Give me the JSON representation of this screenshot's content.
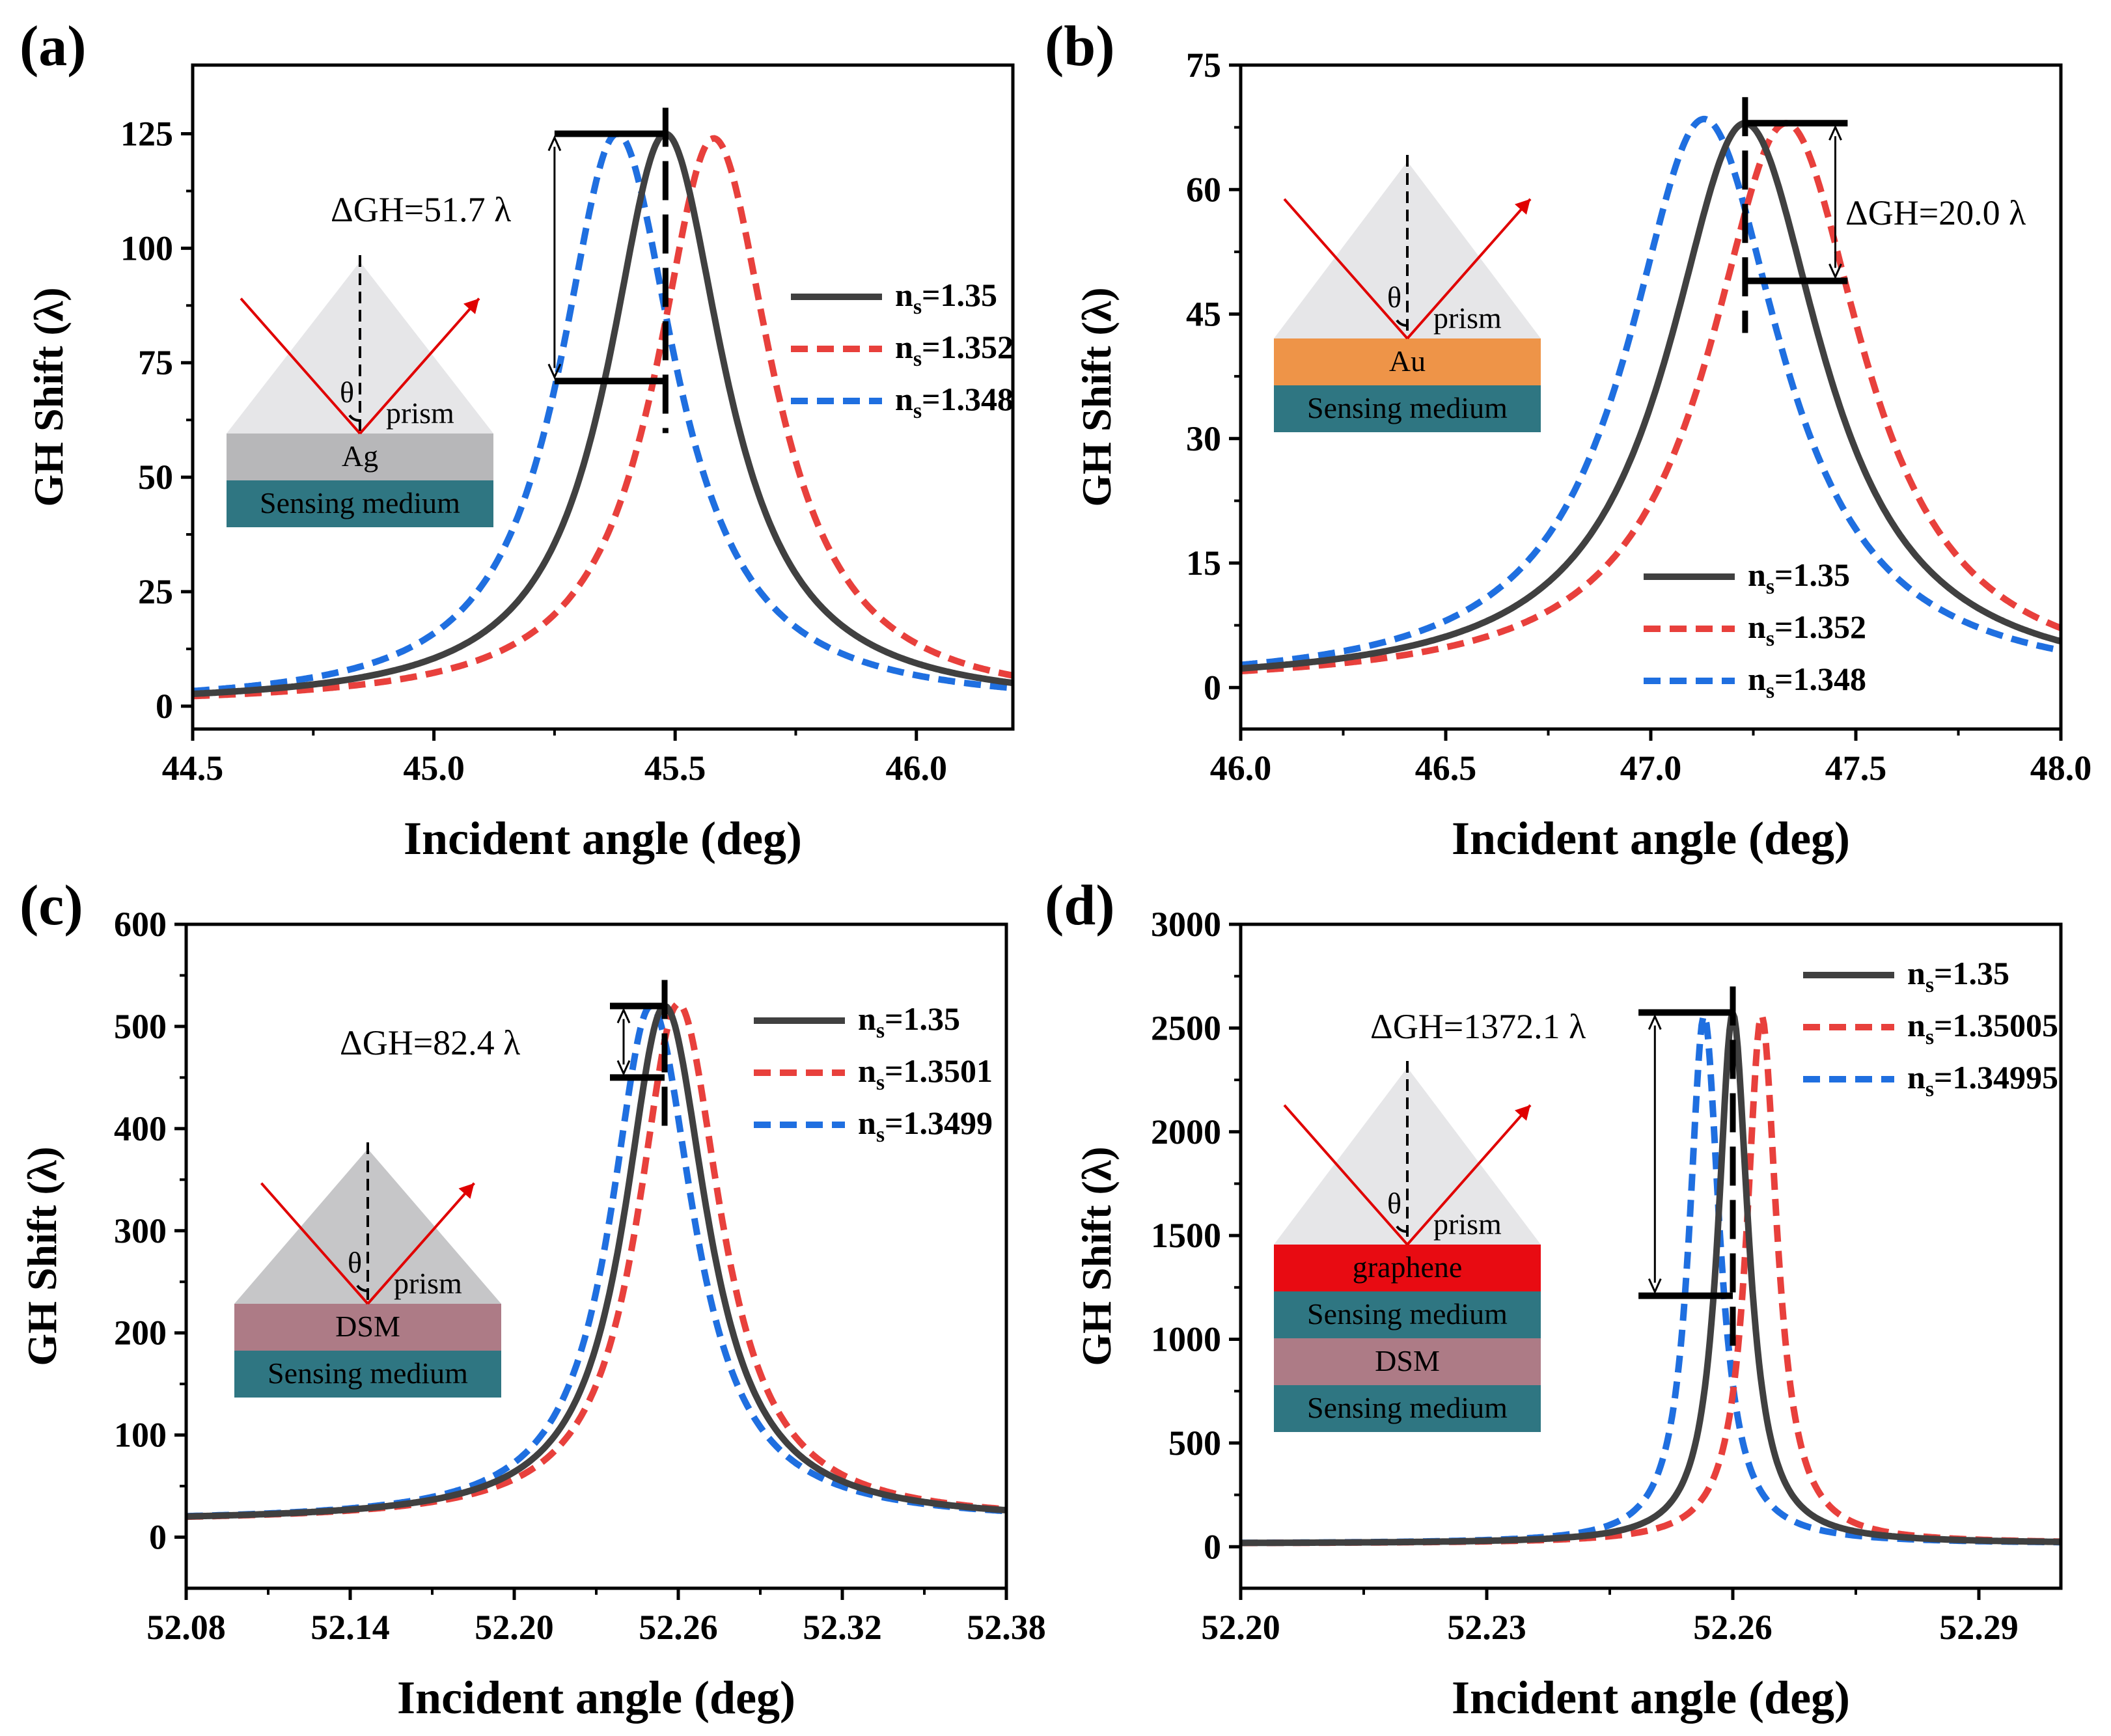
{
  "colors": {
    "black_series": "#404040",
    "red_series": "#e8403c",
    "blue_series": "#1f6fe0",
    "ray": "#e00000",
    "prism": "#e6e6e8",
    "prism_dark": "#c6c6c8",
    "ag": "#b7b7b9",
    "au": "#ee9448",
    "sensing": "#2f7682",
    "dsm": "#ad7b86",
    "graphene": "#e80b12"
  },
  "chart_data": [
    {
      "id": "a",
      "panel_label": "(a)",
      "type": "line",
      "xlabel": "Incident angle (deg)",
      "ylabel": "GH Shift (λ)",
      "xlim": [
        44.5,
        46.2
      ],
      "ylim": [
        -5,
        140
      ],
      "xticks": [
        "44.5",
        "45.0",
        "45.5",
        "46.0"
      ],
      "xtick_values": [
        44.5,
        45.0,
        45.5,
        46.0
      ],
      "yticks": [
        "0",
        "25",
        "50",
        "75",
        "100",
        "125"
      ],
      "ytick_values": [
        0,
        25,
        50,
        75,
        100,
        125
      ],
      "series": [
        {
          "name_main": "n",
          "name_sub": "s",
          "name_rest": "=1.35",
          "style": "solid",
          "color_key": "black_series",
          "peak_x": 45.48,
          "peak_y": 125,
          "baseline": 0,
          "gamma_left": 0.145,
          "gamma_right": 0.148
        },
        {
          "name_main": "n",
          "name_sub": "s",
          "name_rest": "=1.352",
          "style": "dashed",
          "color_key": "red_series",
          "peak_x": 45.58,
          "peak_y": 124,
          "baseline": 0,
          "gamma_left": 0.145,
          "gamma_right": 0.148
        },
        {
          "name_main": "n",
          "name_sub": "s",
          "name_rest": "=1.348",
          "style": "dashed",
          "color_key": "blue_series",
          "peak_x": 45.38,
          "peak_y": 125,
          "baseline": 0,
          "gamma_left": 0.145,
          "gamma_right": 0.148
        }
      ],
      "annotation": {
        "text": "ΔGH=51.7 λ",
        "x_data": 45.48,
        "y_top": 125,
        "y_bottom": 71,
        "arrow_x": 45.25,
        "bar_x_left": 45.25,
        "dash_x": 45.48
      },
      "inset": {
        "type": "single",
        "metal": "Ag",
        "metal_color_key": "ag",
        "prism_label": "prism",
        "theta": "θ",
        "medium": "Sensing medium"
      }
    },
    {
      "id": "b",
      "panel_label": "(b)",
      "type": "line",
      "xlabel": "Incident angle (deg)",
      "ylabel": "GH Shift (λ)",
      "xlim": [
        46.0,
        48.0
      ],
      "ylim": [
        -5,
        75
      ],
      "xticks": [
        "46.0",
        "46.5",
        "47.0",
        "47.5",
        "48.0"
      ],
      "xtick_values": [
        46.0,
        46.5,
        47.0,
        47.5,
        48.0
      ],
      "yticks": [
        "0",
        "15",
        "30",
        "45",
        "60",
        "75"
      ],
      "ytick_values": [
        0,
        15,
        30,
        45,
        60,
        75
      ],
      "series": [
        {
          "name_main": "n",
          "name_sub": "s",
          "name_rest": "=1.35",
          "style": "solid",
          "color_key": "black_series",
          "peak_x": 47.23,
          "peak_y": 68,
          "baseline": 0,
          "gamma_left": 0.23,
          "gamma_right": 0.23
        },
        {
          "name_main": "n",
          "name_sub": "s",
          "name_rest": "=1.352",
          "style": "dashed",
          "color_key": "red_series",
          "peak_x": 47.33,
          "peak_y": 68,
          "baseline": 0,
          "gamma_left": 0.23,
          "gamma_right": 0.23
        },
        {
          "name_main": "n",
          "name_sub": "s",
          "name_rest": "=1.348",
          "style": "dashed",
          "color_key": "blue_series",
          "peak_x": 47.13,
          "peak_y": 68.5,
          "baseline": 0,
          "gamma_left": 0.23,
          "gamma_right": 0.23
        }
      ],
      "annotation": {
        "text": "ΔGH=20.0 λ",
        "x_data": 47.23,
        "y_top": 68,
        "y_bottom": 49,
        "arrow_x": 47.45,
        "bar_x_right": 47.48,
        "dash_x": 47.23
      },
      "inset": {
        "type": "single",
        "metal": "Au",
        "metal_color_key": "au",
        "prism_label": "prism",
        "theta": "θ",
        "medium": "Sensing medium"
      }
    },
    {
      "id": "c",
      "panel_label": "(c)",
      "type": "line",
      "xlabel": "Incident angle (deg)",
      "ylabel": "GH Shift (λ)",
      "xlim": [
        52.08,
        52.38
      ],
      "ylim": [
        -50,
        600
      ],
      "xticks": [
        "52.08",
        "52.14",
        "52.20",
        "52.26",
        "52.32",
        "52.38"
      ],
      "xtick_values": [
        52.08,
        52.14,
        52.2,
        52.26,
        52.32,
        52.38
      ],
      "yticks": [
        "0",
        "100",
        "200",
        "300",
        "400",
        "500",
        "600"
      ],
      "ytick_values": [
        0,
        100,
        200,
        300,
        400,
        500,
        600
      ],
      "series": [
        {
          "name_main": "n",
          "name_sub": "s",
          "name_rest": "=1.35",
          "style": "solid",
          "color_key": "black_series",
          "peak_x": 52.255,
          "peak_y": 520,
          "baseline": 15,
          "gamma_left": 0.018,
          "gamma_right": 0.019
        },
        {
          "name_main": "n",
          "name_sub": "s",
          "name_rest": "=1.3501",
          "style": "dashed",
          "color_key": "red_series",
          "peak_x": 52.26,
          "peak_y": 522,
          "baseline": 15,
          "gamma_left": 0.018,
          "gamma_right": 0.019
        },
        {
          "name_main": "n",
          "name_sub": "s",
          "name_rest": "=1.3499",
          "style": "dashed",
          "color_key": "blue_series",
          "peak_x": 52.25,
          "peak_y": 520,
          "baseline": 15,
          "gamma_left": 0.018,
          "gamma_right": 0.019
        }
      ],
      "annotation": {
        "text": "ΔGH=82.4 λ",
        "x_data": 52.255,
        "y_top": 520,
        "y_bottom": 450,
        "arrow_x": 52.24,
        "bar_x_left": 52.235,
        "dash_x": 52.255
      },
      "inset": {
        "type": "single",
        "metal": "DSM",
        "metal_color_key": "dsm",
        "prism_label": "prism",
        "theta": "θ",
        "medium": "Sensing medium"
      }
    },
    {
      "id": "d",
      "panel_label": "(d)",
      "type": "line",
      "xlabel": "Incident angle (deg)",
      "ylabel": "GH Shift (λ)",
      "xlim": [
        52.2,
        52.3
      ],
      "ylim": [
        -200,
        3000
      ],
      "xticks": [
        "52.20",
        "52.23",
        "52.26",
        "52.29"
      ],
      "xtick_values": [
        52.2,
        52.23,
        52.26,
        52.29
      ],
      "yticks": [
        "0",
        "500",
        "1000",
        "1500",
        "2000",
        "2500",
        "3000"
      ],
      "ytick_values": [
        0,
        500,
        1000,
        1500,
        2000,
        2500,
        3000
      ],
      "series": [
        {
          "name_main": "n",
          "name_sub": "s",
          "name_rest": "=1.35",
          "style": "solid",
          "color_key": "black_series",
          "peak_x": 52.26,
          "peak_y": 2570,
          "baseline": 15,
          "gamma_left": 0.0022,
          "gamma_right": 0.0023
        },
        {
          "name_main": "n",
          "name_sub": "s",
          "name_rest": "=1.35005",
          "style": "dashed",
          "color_key": "red_series",
          "peak_x": 52.2635,
          "peak_y": 2560,
          "baseline": 15,
          "gamma_left": 0.0022,
          "gamma_right": 0.0023
        },
        {
          "name_main": "n",
          "name_sub": "s",
          "name_rest": "=1.34995",
          "style": "dashed",
          "color_key": "blue_series",
          "peak_x": 52.2565,
          "peak_y": 2560,
          "baseline": 15,
          "gamma_left": 0.0022,
          "gamma_right": 0.0023
        }
      ],
      "annotation": {
        "text": "ΔGH=1372.1 λ",
        "x_data": 52.26,
        "y_top": 2575,
        "y_bottom": 1210,
        "arrow_x": 52.2505,
        "bar_x_left": 52.2485,
        "dash_x": 52.26
      },
      "inset": {
        "type": "stack",
        "metal": "graphene",
        "metal_color_key": "graphene",
        "prism_label": "prism",
        "theta": "θ",
        "medium": "Sensing medium",
        "dsm": "DSM",
        "medium2": "Sensing medium"
      }
    }
  ]
}
